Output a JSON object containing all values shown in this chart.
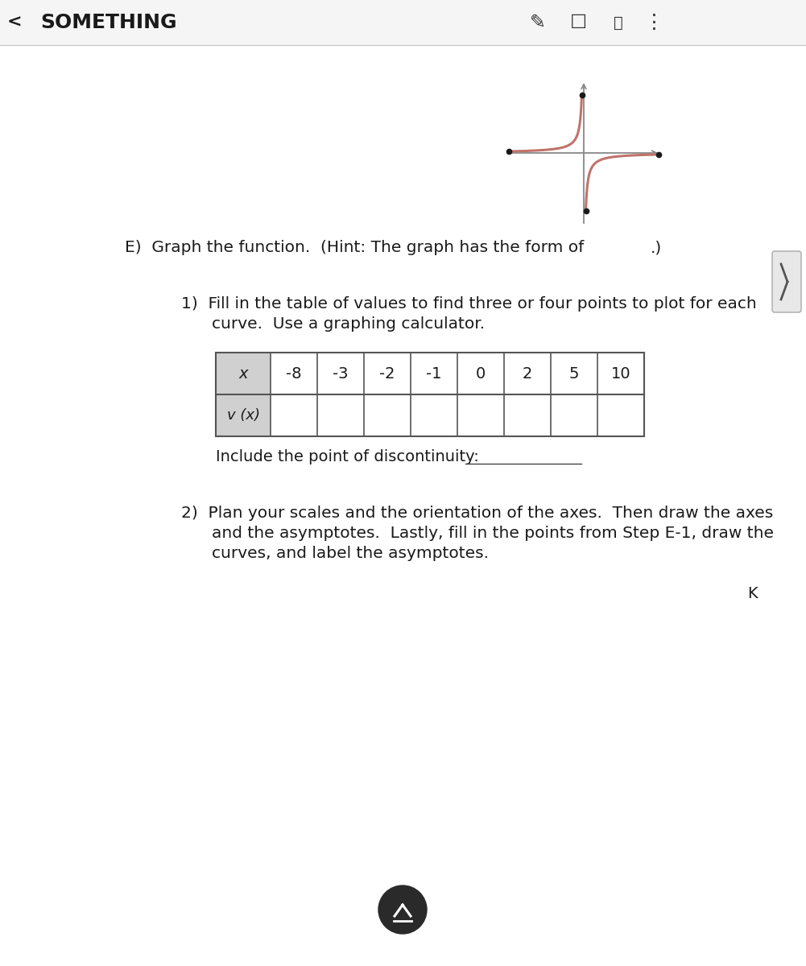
{
  "title": "SOMETHING",
  "background_color": "#f5f5f5",
  "content_bg": "#ffffff",
  "table_x_values": [
    "-8",
    "-3",
    "-2",
    "-1",
    "0",
    "2",
    "5",
    "10"
  ],
  "table_row1_label": "x",
  "table_row2_label": "v (x)",
  "discontinuity_text": "Include the point of discontinuity: ",
  "curve_color": "#c0736a",
  "axes_color": "#888888",
  "dot_color": "#1a1a1a",
  "table_header_bg": "#d0d0d0",
  "table_border_color": "#555555",
  "font_color": "#1a1a1a",
  "icons_color": "#333333"
}
